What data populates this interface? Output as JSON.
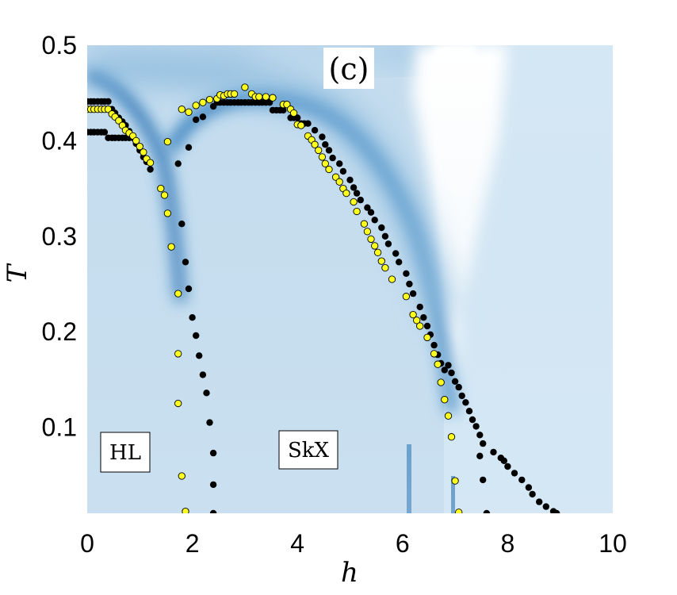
{
  "chart_data": {
    "type": "heatmap",
    "title": "",
    "panel_label": "(c)",
    "xlabel": "h",
    "ylabel": "T",
    "xlim": [
      0,
      10
    ],
    "ylim": [
      0.01,
      0.5
    ],
    "x_ticks": [
      "0",
      "2",
      "4",
      "6",
      "8",
      "10"
    ],
    "y_ticks": [
      "0.1",
      "0.2",
      "0.3",
      "0.4",
      "0.5"
    ],
    "annotations": [
      "HL",
      "SkX"
    ],
    "colormap": {
      "low": "#ffffff",
      "mid": "#c4dcee",
      "high": "#1f6bb0"
    },
    "series": [
      {
        "marker": "black-dot",
        "color": "#000000",
        "points": [
          [
            0.0,
            0.441
          ],
          [
            0.07,
            0.441
          ],
          [
            0.13,
            0.441
          ],
          [
            0.2,
            0.441
          ],
          [
            0.27,
            0.441
          ],
          [
            0.33,
            0.441
          ],
          [
            0.4,
            0.441
          ],
          [
            0.0,
            0.409
          ],
          [
            0.07,
            0.409
          ],
          [
            0.13,
            0.409
          ],
          [
            0.2,
            0.409
          ],
          [
            0.27,
            0.409
          ],
          [
            0.33,
            0.409
          ],
          [
            0.4,
            0.403
          ],
          [
            0.47,
            0.403
          ],
          [
            0.53,
            0.403
          ],
          [
            0.6,
            0.403
          ],
          [
            0.67,
            0.403
          ],
          [
            0.73,
            0.403
          ],
          [
            0.8,
            0.403
          ],
          [
            0.47,
            0.433
          ],
          [
            0.53,
            0.429
          ],
          [
            0.6,
            0.424
          ],
          [
            0.67,
            0.42
          ],
          [
            0.73,
            0.416
          ],
          [
            0.8,
            0.41
          ],
          [
            0.87,
            0.403
          ],
          [
            0.93,
            0.397
          ],
          [
            1.0,
            0.39
          ],
          [
            1.07,
            0.383
          ],
          [
            1.13,
            0.378
          ],
          [
            1.2,
            0.37
          ],
          [
            1.73,
            0.376
          ],
          [
            1.93,
            0.393
          ],
          [
            2.07,
            0.422
          ],
          [
            2.2,
            0.425
          ],
          [
            2.4,
            0.436
          ],
          [
            2.47,
            0.44
          ],
          [
            2.53,
            0.44
          ],
          [
            2.6,
            0.44
          ],
          [
            2.67,
            0.44
          ],
          [
            2.73,
            0.44
          ],
          [
            2.8,
            0.44
          ],
          [
            2.87,
            0.44
          ],
          [
            2.93,
            0.44
          ],
          [
            3.0,
            0.44
          ],
          [
            3.07,
            0.44
          ],
          [
            3.13,
            0.44
          ],
          [
            3.2,
            0.44
          ],
          [
            3.27,
            0.44
          ],
          [
            3.33,
            0.44
          ],
          [
            3.4,
            0.44
          ],
          [
            3.47,
            0.44
          ],
          [
            3.53,
            0.432
          ],
          [
            3.6,
            0.432
          ],
          [
            3.67,
            0.432
          ],
          [
            3.73,
            0.432
          ],
          [
            3.87,
            0.424
          ],
          [
            3.93,
            0.424
          ],
          [
            4.0,
            0.424
          ],
          [
            4.07,
            0.418
          ],
          [
            4.13,
            0.418
          ],
          [
            4.2,
            0.418
          ],
          [
            4.33,
            0.411
          ],
          [
            4.47,
            0.404
          ],
          [
            4.53,
            0.396
          ],
          [
            4.6,
            0.39
          ],
          [
            4.67,
            0.382
          ],
          [
            4.8,
            0.376
          ],
          [
            4.87,
            0.368
          ],
          [
            5.0,
            0.359
          ],
          [
            5.07,
            0.351
          ],
          [
            5.13,
            0.345
          ],
          [
            5.2,
            0.338
          ],
          [
            5.33,
            0.33
          ],
          [
            5.4,
            0.325
          ],
          [
            5.47,
            0.317
          ],
          [
            5.6,
            0.309
          ],
          [
            5.67,
            0.3
          ],
          [
            5.73,
            0.292
          ],
          [
            5.87,
            0.282
          ],
          [
            5.93,
            0.273
          ],
          [
            6.07,
            0.261
          ],
          [
            6.13,
            0.25
          ],
          [
            6.2,
            0.24
          ],
          [
            6.33,
            0.226
          ],
          [
            6.4,
            0.215
          ],
          [
            6.47,
            0.206
          ],
          [
            6.53,
            0.197
          ],
          [
            6.6,
            0.186
          ],
          [
            6.67,
            0.176
          ],
          [
            6.73,
            0.167
          ],
          [
            6.8,
            0.16
          ],
          [
            1.8,
            0.313
          ],
          [
            1.87,
            0.273
          ],
          [
            1.93,
            0.245
          ],
          [
            2.0,
            0.215
          ],
          [
            2.07,
            0.196
          ],
          [
            2.13,
            0.175
          ],
          [
            2.2,
            0.155
          ],
          [
            2.27,
            0.136
          ],
          [
            2.33,
            0.105
          ],
          [
            2.4,
            0.073
          ],
          [
            2.4,
            0.04
          ],
          [
            2.4,
            0.01
          ],
          [
            6.87,
            0.165
          ],
          [
            6.93,
            0.157
          ],
          [
            7.0,
            0.148
          ],
          [
            7.07,
            0.142
          ],
          [
            7.13,
            0.133
          ],
          [
            7.2,
            0.126
          ],
          [
            7.27,
            0.117
          ],
          [
            7.33,
            0.108
          ],
          [
            7.4,
            0.101
          ],
          [
            7.47,
            0.092
          ],
          [
            7.53,
            0.083
          ],
          [
            7.73,
            0.074
          ],
          [
            7.87,
            0.068
          ],
          [
            7.93,
            0.065
          ],
          [
            8.0,
            0.059
          ],
          [
            8.13,
            0.052
          ],
          [
            8.27,
            0.045
          ],
          [
            8.4,
            0.037
          ],
          [
            8.47,
            0.03
          ],
          [
            8.6,
            0.022
          ],
          [
            8.73,
            0.017
          ],
          [
            8.87,
            0.012
          ],
          [
            8.93,
            0.01
          ],
          [
            7.47,
            0.07
          ],
          [
            7.53,
            0.045
          ],
          [
            7.6,
            0.01
          ]
        ]
      },
      {
        "marker": "yellow-dot",
        "color": "#ffff1f",
        "points": [
          [
            0.0,
            0.433
          ],
          [
            0.07,
            0.433
          ],
          [
            0.13,
            0.433
          ],
          [
            0.2,
            0.433
          ],
          [
            0.27,
            0.433
          ],
          [
            0.33,
            0.433
          ],
          [
            0.4,
            0.433
          ],
          [
            0.47,
            0.428
          ],
          [
            0.53,
            0.425
          ],
          [
            0.6,
            0.421
          ],
          [
            0.67,
            0.416
          ],
          [
            0.73,
            0.411
          ],
          [
            0.8,
            0.408
          ],
          [
            0.87,
            0.405
          ],
          [
            0.93,
            0.4
          ],
          [
            1.0,
            0.394
          ],
          [
            1.07,
            0.388
          ],
          [
            1.13,
            0.381
          ],
          [
            1.2,
            0.377
          ],
          [
            1.4,
            0.35
          ],
          [
            1.47,
            0.343
          ],
          [
            1.53,
            0.324
          ],
          [
            1.6,
            0.289
          ],
          [
            1.73,
            0.24
          ],
          [
            1.73,
            0.177
          ],
          [
            1.73,
            0.125
          ],
          [
            1.8,
            0.049
          ],
          [
            1.87,
            0.012
          ],
          [
            1.53,
            0.399
          ],
          [
            1.8,
            0.433
          ],
          [
            1.93,
            0.43
          ],
          [
            2.07,
            0.437
          ],
          [
            2.2,
            0.44
          ],
          [
            2.33,
            0.443
          ],
          [
            2.47,
            0.444
          ],
          [
            2.53,
            0.448
          ],
          [
            2.6,
            0.447
          ],
          [
            2.67,
            0.449
          ],
          [
            2.73,
            0.449
          ],
          [
            2.8,
            0.449
          ],
          [
            3.0,
            0.456
          ],
          [
            3.13,
            0.449
          ],
          [
            3.2,
            0.446
          ],
          [
            3.27,
            0.446
          ],
          [
            3.4,
            0.446
          ],
          [
            3.53,
            0.445
          ],
          [
            3.73,
            0.438
          ],
          [
            3.8,
            0.438
          ],
          [
            3.87,
            0.433
          ],
          [
            3.93,
            0.429
          ],
          [
            4.0,
            0.417
          ],
          [
            4.07,
            0.416
          ],
          [
            4.2,
            0.405
          ],
          [
            4.27,
            0.401
          ],
          [
            4.33,
            0.396
          ],
          [
            4.4,
            0.39
          ],
          [
            4.47,
            0.383
          ],
          [
            4.53,
            0.376
          ],
          [
            4.6,
            0.37
          ],
          [
            4.73,
            0.362
          ],
          [
            4.8,
            0.357
          ],
          [
            4.87,
            0.35
          ],
          [
            4.93,
            0.345
          ],
          [
            5.07,
            0.336
          ],
          [
            5.13,
            0.326
          ],
          [
            5.27,
            0.313
          ],
          [
            5.33,
            0.305
          ],
          [
            5.4,
            0.297
          ],
          [
            5.47,
            0.29
          ],
          [
            5.53,
            0.283
          ],
          [
            5.6,
            0.274
          ],
          [
            5.67,
            0.267
          ],
          [
            5.8,
            0.255
          ],
          [
            6.07,
            0.237
          ],
          [
            6.2,
            0.218
          ],
          [
            6.27,
            0.212
          ],
          [
            6.33,
            0.206
          ],
          [
            6.47,
            0.194
          ],
          [
            6.6,
            0.177
          ],
          [
            6.67,
            0.166
          ],
          [
            6.73,
            0.147
          ],
          [
            6.8,
            0.129
          ],
          [
            6.87,
            0.112
          ],
          [
            6.93,
            0.09
          ],
          [
            7.0,
            0.044
          ],
          [
            7.07,
            0.011
          ]
        ]
      }
    ]
  }
}
